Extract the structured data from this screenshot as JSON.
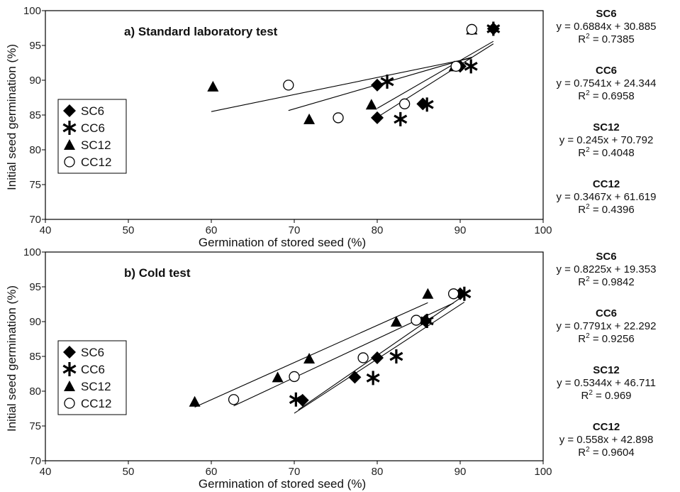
{
  "chart_data": [
    {
      "type": "scatter",
      "title": "a) Standard laboratory test",
      "xlabel": "Germination of stored seed (%)",
      "ylabel": "Initial seed germination   (%)",
      "xlim": [
        40,
        100
      ],
      "ylim": [
        70,
        100
      ],
      "x_ticks": [
        "40",
        "50",
        "60",
        "70",
        "80",
        "90",
        "100"
      ],
      "y_ticks": [
        "70",
        "75",
        "80",
        "85",
        "90",
        "95",
        "100"
      ],
      "legend": {
        "placement": "middle-left",
        "entries": [
          "SC6",
          "CC6",
          "SC12",
          "CC12"
        ]
      },
      "series": [
        {
          "name": "SC6",
          "marker": "diamond",
          "points": [
            [
              80,
              89.3
            ],
            [
              80,
              84.6
            ],
            [
              85.5,
              86.6
            ],
            [
              90,
              92
            ],
            [
              94,
              97.4
            ]
          ],
          "fit": {
            "slope": 0.6884,
            "intercept": 30.885,
            "x_range": [
              80,
              94
            ]
          }
        },
        {
          "name": "CC6",
          "marker": "asterisk",
          "points": [
            [
              81.2,
              89.8
            ],
            [
              82.8,
              84.4
            ],
            [
              86,
              86.5
            ],
            [
              91.3,
              92
            ],
            [
              94,
              97.4
            ]
          ],
          "fit": {
            "slope": 0.7541,
            "intercept": 24.344,
            "x_range": [
              80,
              94
            ]
          }
        },
        {
          "name": "SC12",
          "marker": "triangle",
          "points": [
            [
              60.2,
              89.1
            ],
            [
              71.8,
              84.4
            ],
            [
              79.3,
              86.5
            ],
            [
              89.3,
              92
            ],
            [
              91.4,
              97.3
            ]
          ],
          "fit": {
            "slope": 0.245,
            "intercept": 70.792,
            "x_range": [
              60,
              91.4
            ]
          }
        },
        {
          "name": "CC12",
          "marker": "circle",
          "points": [
            [
              69.3,
              89.3
            ],
            [
              75.3,
              84.6
            ],
            [
              83.3,
              86.6
            ],
            [
              89.5,
              92
            ],
            [
              91.4,
              97.3
            ]
          ],
          "fit": {
            "slope": 0.3467,
            "intercept": 61.619,
            "x_range": [
              69.3,
              91.4
            ]
          }
        }
      ],
      "equations": [
        {
          "name": "SC6",
          "line": "y = 0.6884x + 30.885",
          "r2_prefix": "R",
          "r2_value": " = 0.7385"
        },
        {
          "name": "CC6",
          "line": "y = 0.7541x + 24.344",
          "r2_prefix": "R",
          "r2_value": " = 0.6958"
        },
        {
          "name": "SC12",
          "line": "y = 0.245x + 70.792",
          "r2_prefix": "R",
          "r2_value": " = 0.4048"
        },
        {
          "name": "CC12",
          "line": "y = 0.3467x + 61.619",
          "r2_prefix": "R",
          "r2_value": " = 0.4396"
        }
      ]
    },
    {
      "type": "scatter",
      "title": "b) Cold test",
      "xlabel": "Germination of stored seed (%)",
      "ylabel": "Initial seed germination   (%)",
      "xlim": [
        40,
        100
      ],
      "ylim": [
        70,
        100
      ],
      "x_ticks": [
        "40",
        "50",
        "60",
        "70",
        "80",
        "90",
        "100"
      ],
      "y_ticks": [
        "70",
        "75",
        "80",
        "85",
        "90",
        "95",
        "100"
      ],
      "legend": {
        "placement": "middle-left",
        "entries": [
          "SC6",
          "CC6",
          "SC12",
          "CC12"
        ]
      },
      "series": [
        {
          "name": "SC6",
          "marker": "diamond",
          "points": [
            [
              71,
              78.7
            ],
            [
              77.3,
              82
            ],
            [
              80,
              84.8
            ],
            [
              85.8,
              90.1
            ],
            [
              90,
              94
            ]
          ],
          "fit": {
            "slope": 0.8225,
            "intercept": 19.353,
            "x_range": [
              70.5,
              90
            ]
          }
        },
        {
          "name": "CC6",
          "marker": "asterisk",
          "points": [
            [
              70.2,
              78.8
            ],
            [
              79.5,
              81.9
            ],
            [
              82.3,
              85
            ],
            [
              86,
              90.1
            ],
            [
              90.5,
              94
            ]
          ],
          "fit": {
            "slope": 0.7791,
            "intercept": 22.292,
            "x_range": [
              70,
              90.5
            ]
          }
        },
        {
          "name": "SC12",
          "marker": "triangle",
          "points": [
            [
              58,
              78.5
            ],
            [
              68,
              82
            ],
            [
              71.8,
              84.7
            ],
            [
              82.3,
              90
            ],
            [
              86.1,
              94
            ]
          ],
          "fit": {
            "slope": 0.5344,
            "intercept": 46.711,
            "x_range": [
              58,
              86.1
            ]
          }
        },
        {
          "name": "CC12",
          "marker": "circle",
          "points": [
            [
              62.7,
              78.8
            ],
            [
              70,
              82.1
            ],
            [
              78.3,
              84.8
            ],
            [
              84.7,
              90.2
            ],
            [
              89.2,
              94
            ]
          ],
          "fit": {
            "slope": 0.558,
            "intercept": 42.898,
            "x_range": [
              62.7,
              89.2
            ]
          }
        }
      ],
      "equations": [
        {
          "name": "SC6",
          "line": "y = 0.8225x + 19.353",
          "r2_prefix": "R",
          "r2_value": " = 0.9842"
        },
        {
          "name": "CC6",
          "line": "y = 0.7791x + 22.292",
          "r2_prefix": "R",
          "r2_value": " = 0.9256"
        },
        {
          "name": "SC12",
          "line": "y = 0.5344x + 46.711",
          "r2_prefix": "R",
          "r2_value": " = 0.969"
        },
        {
          "name": "CC12",
          "line": "y = 0.558x + 42.898",
          "r2_prefix": "R",
          "r2_value": " = 0.9604"
        }
      ]
    }
  ]
}
